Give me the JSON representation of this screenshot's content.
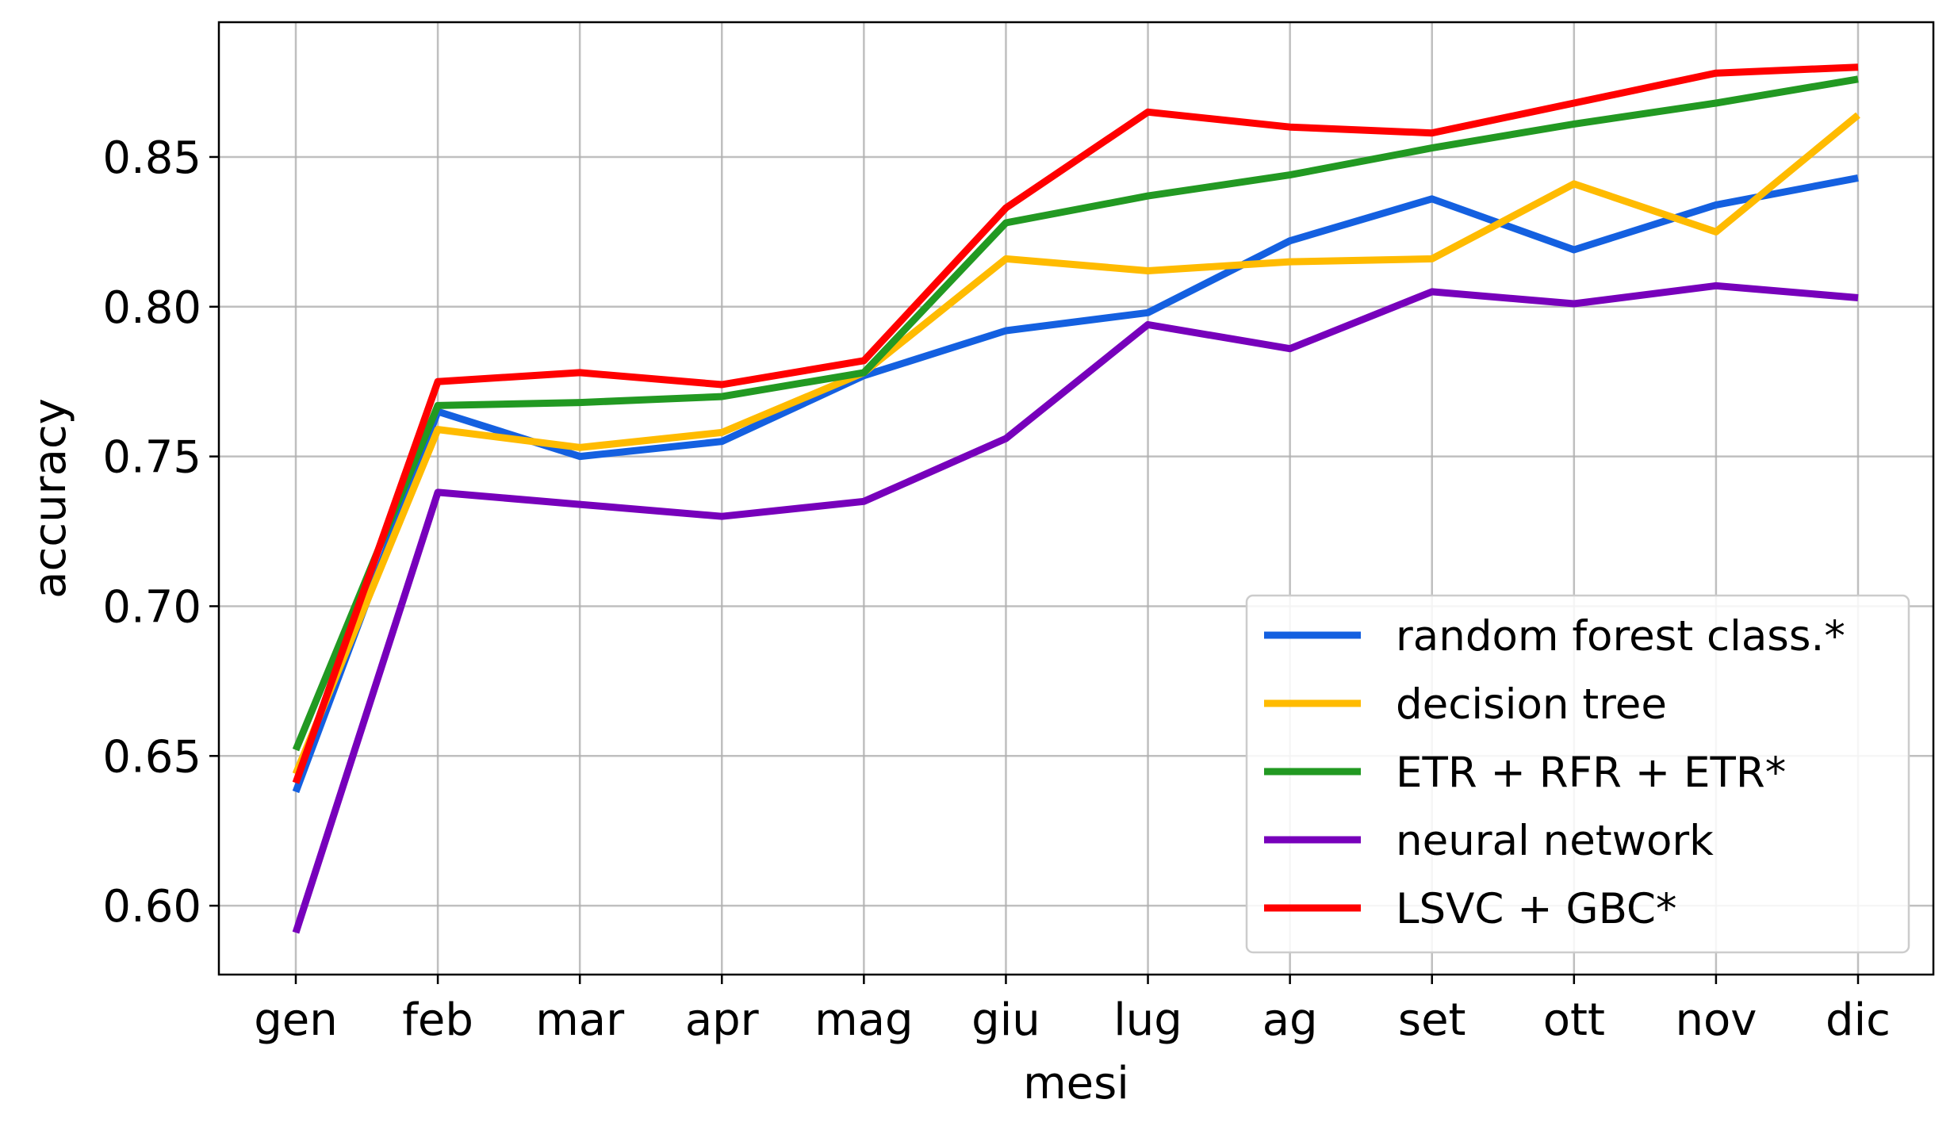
{
  "chart_data": {
    "type": "line",
    "title": "",
    "xlabel": "mesi",
    "ylabel": "accuracy",
    "categories": [
      "gen",
      "feb",
      "mar",
      "apr",
      "mag",
      "giu",
      "lug",
      "ag",
      "set",
      "ott",
      "nov",
      "dic"
    ],
    "ylim": [
      0.577,
      0.895
    ],
    "yticks": [
      "0.60",
      "0.65",
      "0.70",
      "0.75",
      "0.80",
      "0.85"
    ],
    "grid": true,
    "legend_position": "lower-right",
    "series": [
      {
        "name": "random forest class.*",
        "color": "#1460e0",
        "values": [
          0.638,
          0.765,
          0.75,
          0.755,
          0.777,
          0.792,
          0.798,
          0.822,
          0.836,
          0.819,
          0.834,
          0.843
        ]
      },
      {
        "name": "decision tree",
        "color": "#ffbb00",
        "values": [
          0.644,
          0.759,
          0.753,
          0.758,
          0.778,
          0.816,
          0.812,
          0.815,
          0.816,
          0.841,
          0.825,
          0.864
        ]
      },
      {
        "name": "ETR + RFR + ETR*",
        "color": "#229922",
        "values": [
          0.652,
          0.767,
          0.768,
          0.77,
          0.778,
          0.828,
          0.837,
          0.844,
          0.853,
          0.861,
          0.868,
          0.876
        ]
      },
      {
        "name": "neural network",
        "color": "#7700bb",
        "values": [
          0.591,
          0.738,
          0.734,
          0.73,
          0.735,
          0.756,
          0.794,
          0.786,
          0.805,
          0.801,
          0.807,
          0.803
        ]
      },
      {
        "name": "LSVC + GBC*",
        "color": "#ff0000",
        "values": [
          0.641,
          0.775,
          0.778,
          0.774,
          0.782,
          0.833,
          0.865,
          0.86,
          0.858,
          0.868,
          0.878,
          0.88
        ]
      }
    ]
  }
}
